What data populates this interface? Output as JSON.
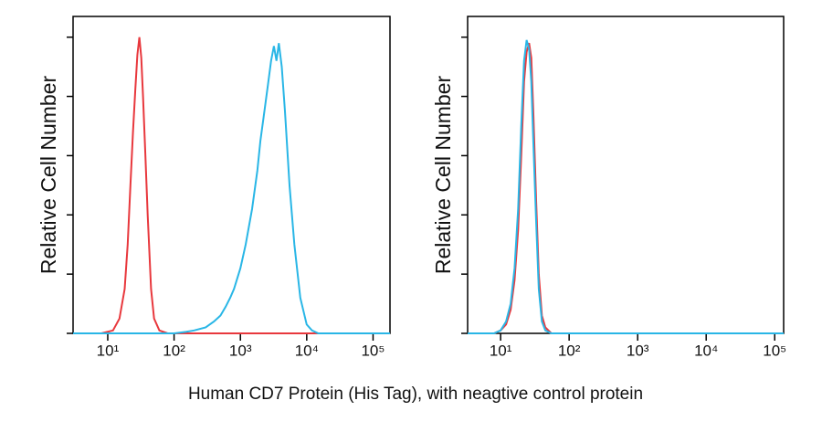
{
  "chart_data": [
    {
      "type": "line",
      "ylabel": "Relative Cell Number",
      "xscale": "log",
      "xlim": [
        3,
        180000
      ],
      "ylim": [
        0,
        107
      ],
      "xticks": [
        {
          "value": 10,
          "label": "10¹"
        },
        {
          "value": 100,
          "label": "10²"
        },
        {
          "value": 1000,
          "label": "10³"
        },
        {
          "value": 10000,
          "label": "10⁴"
        },
        {
          "value": 100000,
          "label": "10⁵"
        }
      ],
      "yticks": [
        0,
        20,
        40,
        60,
        80,
        100
      ],
      "series": [
        {
          "color": "#e8383d",
          "x": [
            3,
            8,
            12,
            15,
            18,
            20,
            22,
            24,
            26,
            28,
            30,
            32,
            34,
            37,
            40,
            45,
            50,
            60,
            80,
            180000
          ],
          "values": [
            0,
            0,
            1,
            5,
            15,
            30,
            50,
            68,
            82,
            94,
            100,
            93,
            80,
            60,
            40,
            15,
            5,
            1,
            0,
            0
          ]
        },
        {
          "color": "#29b6e6",
          "x": [
            3,
            100,
            150,
            200,
            300,
            400,
            500,
            600,
            700,
            800,
            1000,
            1200,
            1500,
            1800,
            2000,
            2300,
            2600,
            2900,
            3200,
            3500,
            3800,
            4200,
            4700,
            5500,
            6500,
            8000,
            10000,
            12000,
            15000,
            180000
          ],
          "values": [
            0,
            0,
            0.5,
            1,
            2,
            4,
            6,
            9,
            12,
            15,
            22,
            30,
            42,
            55,
            65,
            75,
            84,
            92,
            97,
            92,
            98,
            90,
            75,
            50,
            30,
            12,
            3,
            1,
            0,
            0
          ]
        }
      ]
    },
    {
      "type": "line",
      "ylabel": "Relative Cell Number",
      "xscale": "log",
      "xlim": [
        3.3,
        135000
      ],
      "ylim": [
        0,
        107
      ],
      "xticks": [
        {
          "value": 10,
          "label": "10¹"
        },
        {
          "value": 100,
          "label": "10²"
        },
        {
          "value": 1000,
          "label": "10³"
        },
        {
          "value": 10000,
          "label": "10⁴"
        },
        {
          "value": 100000,
          "label": "10⁵"
        }
      ],
      "yticks": [
        0,
        20,
        40,
        60,
        80,
        100
      ],
      "series": [
        {
          "color": "#e8383d",
          "x": [
            3.3,
            8,
            10,
            12,
            14,
            16,
            18,
            20,
            22,
            24,
            26,
            28,
            30,
            33,
            36,
            40,
            45,
            55,
            70,
            135000
          ],
          "values": [
            0,
            0,
            1,
            3,
            8,
            18,
            35,
            60,
            85,
            95,
            98,
            93,
            75,
            45,
            20,
            6,
            2,
            0,
            0,
            0
          ]
        },
        {
          "color": "#29b6e6",
          "x": [
            3.3,
            8,
            10,
            12,
            14,
            16,
            18,
            20,
            22,
            24,
            26,
            28,
            30,
            33,
            36,
            40,
            45,
            55,
            70,
            135000
          ],
          "values": [
            0,
            0,
            1,
            4,
            10,
            22,
            42,
            70,
            92,
            99,
            96,
            85,
            65,
            38,
            15,
            4,
            1,
            0,
            0,
            0
          ]
        }
      ]
    }
  ],
  "caption": "Human CD7 Protein (His Tag), with neagtive control protein"
}
